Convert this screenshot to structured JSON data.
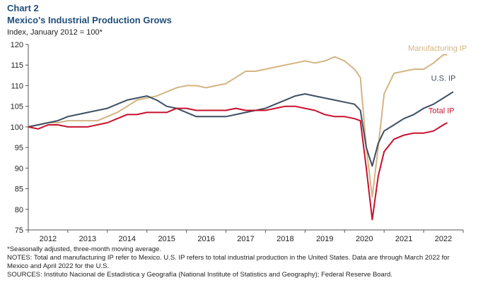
{
  "header": {
    "chart_number": "Chart 2",
    "title": "Mexico's Industrial Production Grows",
    "subtitle": "Index, January 2012 = 100*"
  },
  "notes": {
    "line1": "*Seasonally adjusted, three-month moving average.",
    "line2": "NOTES: Total and manufacturing IP refer to Mexico. U.S. IP refers to total industrial production in the United States. Data are through March 2022 for",
    "line3": "Mexico and April 2022 for the U.S.",
    "line4": "SOURCES: Instituto Nacional de Estadística y Geografía (National Institute of Statistics and Geography); Federal Reserve Board."
  },
  "chart_data": {
    "type": "line",
    "title": "Mexico's Industrial Production Grows",
    "ylabel": "Index, January 2012 = 100*",
    "xlabel": "",
    "ylim": [
      75,
      120
    ],
    "yticks": [
      75,
      80,
      85,
      90,
      95,
      100,
      105,
      110,
      115,
      120
    ],
    "xlim": [
      2011.5,
      2022.5
    ],
    "xticks": [
      2012,
      2013,
      2014,
      2015,
      2016,
      2017,
      2018,
      2019,
      2020,
      2021,
      2022
    ],
    "grid": false,
    "series": [
      {
        "name": "Manufacturing IP",
        "color": "#d4b483",
        "points": [
          [
            2011.5,
            100
          ],
          [
            2011.75,
            100.5
          ],
          [
            2012.0,
            101
          ],
          [
            2012.25,
            101
          ],
          [
            2012.5,
            101.5
          ],
          [
            2012.75,
            101.5
          ],
          [
            2013.0,
            101.5
          ],
          [
            2013.25,
            101.5
          ],
          [
            2013.5,
            102.5
          ],
          [
            2013.75,
            103.5
          ],
          [
            2014.0,
            105
          ],
          [
            2014.25,
            106.5
          ],
          [
            2014.5,
            107
          ],
          [
            2014.75,
            107.5
          ],
          [
            2015.0,
            108.5
          ],
          [
            2015.25,
            109.5
          ],
          [
            2015.5,
            110
          ],
          [
            2015.75,
            110
          ],
          [
            2016.0,
            109.5
          ],
          [
            2016.25,
            110
          ],
          [
            2016.5,
            110.5
          ],
          [
            2016.75,
            112
          ],
          [
            2017.0,
            113.5
          ],
          [
            2017.25,
            113.5
          ],
          [
            2017.5,
            114
          ],
          [
            2017.75,
            114.5
          ],
          [
            2018.0,
            115
          ],
          [
            2018.25,
            115.5
          ],
          [
            2018.5,
            116
          ],
          [
            2018.75,
            115.5
          ],
          [
            2019.0,
            116
          ],
          [
            2019.25,
            117
          ],
          [
            2019.5,
            116
          ],
          [
            2019.75,
            114
          ],
          [
            2019.9,
            112
          ],
          [
            2020.05,
            95
          ],
          [
            2020.2,
            83
          ],
          [
            2020.35,
            95
          ],
          [
            2020.5,
            108
          ],
          [
            2020.75,
            113
          ],
          [
            2021.0,
            113.5
          ],
          [
            2021.25,
            114
          ],
          [
            2021.5,
            114
          ],
          [
            2021.75,
            115.5
          ],
          [
            2022.0,
            117.5
          ],
          [
            2022.1,
            117.5
          ]
        ]
      },
      {
        "name": "U.S. IP",
        "color": "#3d4f63",
        "points": [
          [
            2011.5,
            100
          ],
          [
            2011.75,
            100.5
          ],
          [
            2012.0,
            101
          ],
          [
            2012.25,
            101.5
          ],
          [
            2012.5,
            102.5
          ],
          [
            2012.75,
            103
          ],
          [
            2013.0,
            103.5
          ],
          [
            2013.25,
            104
          ],
          [
            2013.5,
            104.5
          ],
          [
            2013.75,
            105.5
          ],
          [
            2014.0,
            106.5
          ],
          [
            2014.25,
            107
          ],
          [
            2014.5,
            107.5
          ],
          [
            2014.75,
            106.5
          ],
          [
            2015.0,
            105
          ],
          [
            2015.25,
            104.5
          ],
          [
            2015.5,
            103.5
          ],
          [
            2015.75,
            102.5
          ],
          [
            2016.0,
            102.5
          ],
          [
            2016.25,
            102.5
          ],
          [
            2016.5,
            102.5
          ],
          [
            2016.75,
            103
          ],
          [
            2017.0,
            103.5
          ],
          [
            2017.25,
            104
          ],
          [
            2017.5,
            104.5
          ],
          [
            2017.75,
            105.5
          ],
          [
            2018.0,
            106.5
          ],
          [
            2018.25,
            107.5
          ],
          [
            2018.5,
            108
          ],
          [
            2018.75,
            107.5
          ],
          [
            2019.0,
            107
          ],
          [
            2019.25,
            106.5
          ],
          [
            2019.5,
            106
          ],
          [
            2019.75,
            105.5
          ],
          [
            2019.9,
            104
          ],
          [
            2020.05,
            95
          ],
          [
            2020.2,
            90.5
          ],
          [
            2020.35,
            96
          ],
          [
            2020.5,
            99
          ],
          [
            2020.75,
            100.5
          ],
          [
            2021.0,
            102
          ],
          [
            2021.25,
            103
          ],
          [
            2021.5,
            104.5
          ],
          [
            2021.75,
            105.5
          ],
          [
            2022.0,
            107
          ],
          [
            2022.25,
            108.5
          ]
        ]
      },
      {
        "name": "Total IP",
        "color": "#c8102e",
        "points": [
          [
            2011.5,
            100
          ],
          [
            2011.75,
            99.5
          ],
          [
            2012.0,
            100.5
          ],
          [
            2012.25,
            100.5
          ],
          [
            2012.5,
            100
          ],
          [
            2012.75,
            100
          ],
          [
            2013.0,
            100
          ],
          [
            2013.25,
            100.5
          ],
          [
            2013.5,
            101
          ],
          [
            2013.75,
            102
          ],
          [
            2014.0,
            103
          ],
          [
            2014.25,
            103
          ],
          [
            2014.5,
            103.5
          ],
          [
            2014.75,
            103.5
          ],
          [
            2015.0,
            103.5
          ],
          [
            2015.25,
            104.5
          ],
          [
            2015.5,
            104.5
          ],
          [
            2015.75,
            104
          ],
          [
            2016.0,
            104
          ],
          [
            2016.25,
            104
          ],
          [
            2016.5,
            104
          ],
          [
            2016.75,
            104.5
          ],
          [
            2017.0,
            104
          ],
          [
            2017.25,
            104
          ],
          [
            2017.5,
            104
          ],
          [
            2017.75,
            104.5
          ],
          [
            2018.0,
            105
          ],
          [
            2018.25,
            105
          ],
          [
            2018.5,
            104.5
          ],
          [
            2018.75,
            104
          ],
          [
            2019.0,
            103
          ],
          [
            2019.25,
            102.5
          ],
          [
            2019.5,
            102.5
          ],
          [
            2019.75,
            102
          ],
          [
            2019.9,
            101.5
          ],
          [
            2020.05,
            90
          ],
          [
            2020.2,
            77.5
          ],
          [
            2020.35,
            88
          ],
          [
            2020.5,
            94
          ],
          [
            2020.75,
            97
          ],
          [
            2021.0,
            98
          ],
          [
            2021.25,
            98.5
          ],
          [
            2021.5,
            98.5
          ],
          [
            2021.75,
            99
          ],
          [
            2022.0,
            100.5
          ],
          [
            2022.1,
            101
          ]
        ]
      }
    ],
    "labels": [
      {
        "series": "Manufacturing IP",
        "text": "Manufacturing IP",
        "x": 2021.85,
        "y": 118.5
      },
      {
        "series": "U.S. IP",
        "text": "U.S. IP",
        "x": 2022.0,
        "y": 111.2
      },
      {
        "series": "Total IP",
        "text": "Total IP",
        "x": 2021.95,
        "y": 103.3
      }
    ]
  }
}
